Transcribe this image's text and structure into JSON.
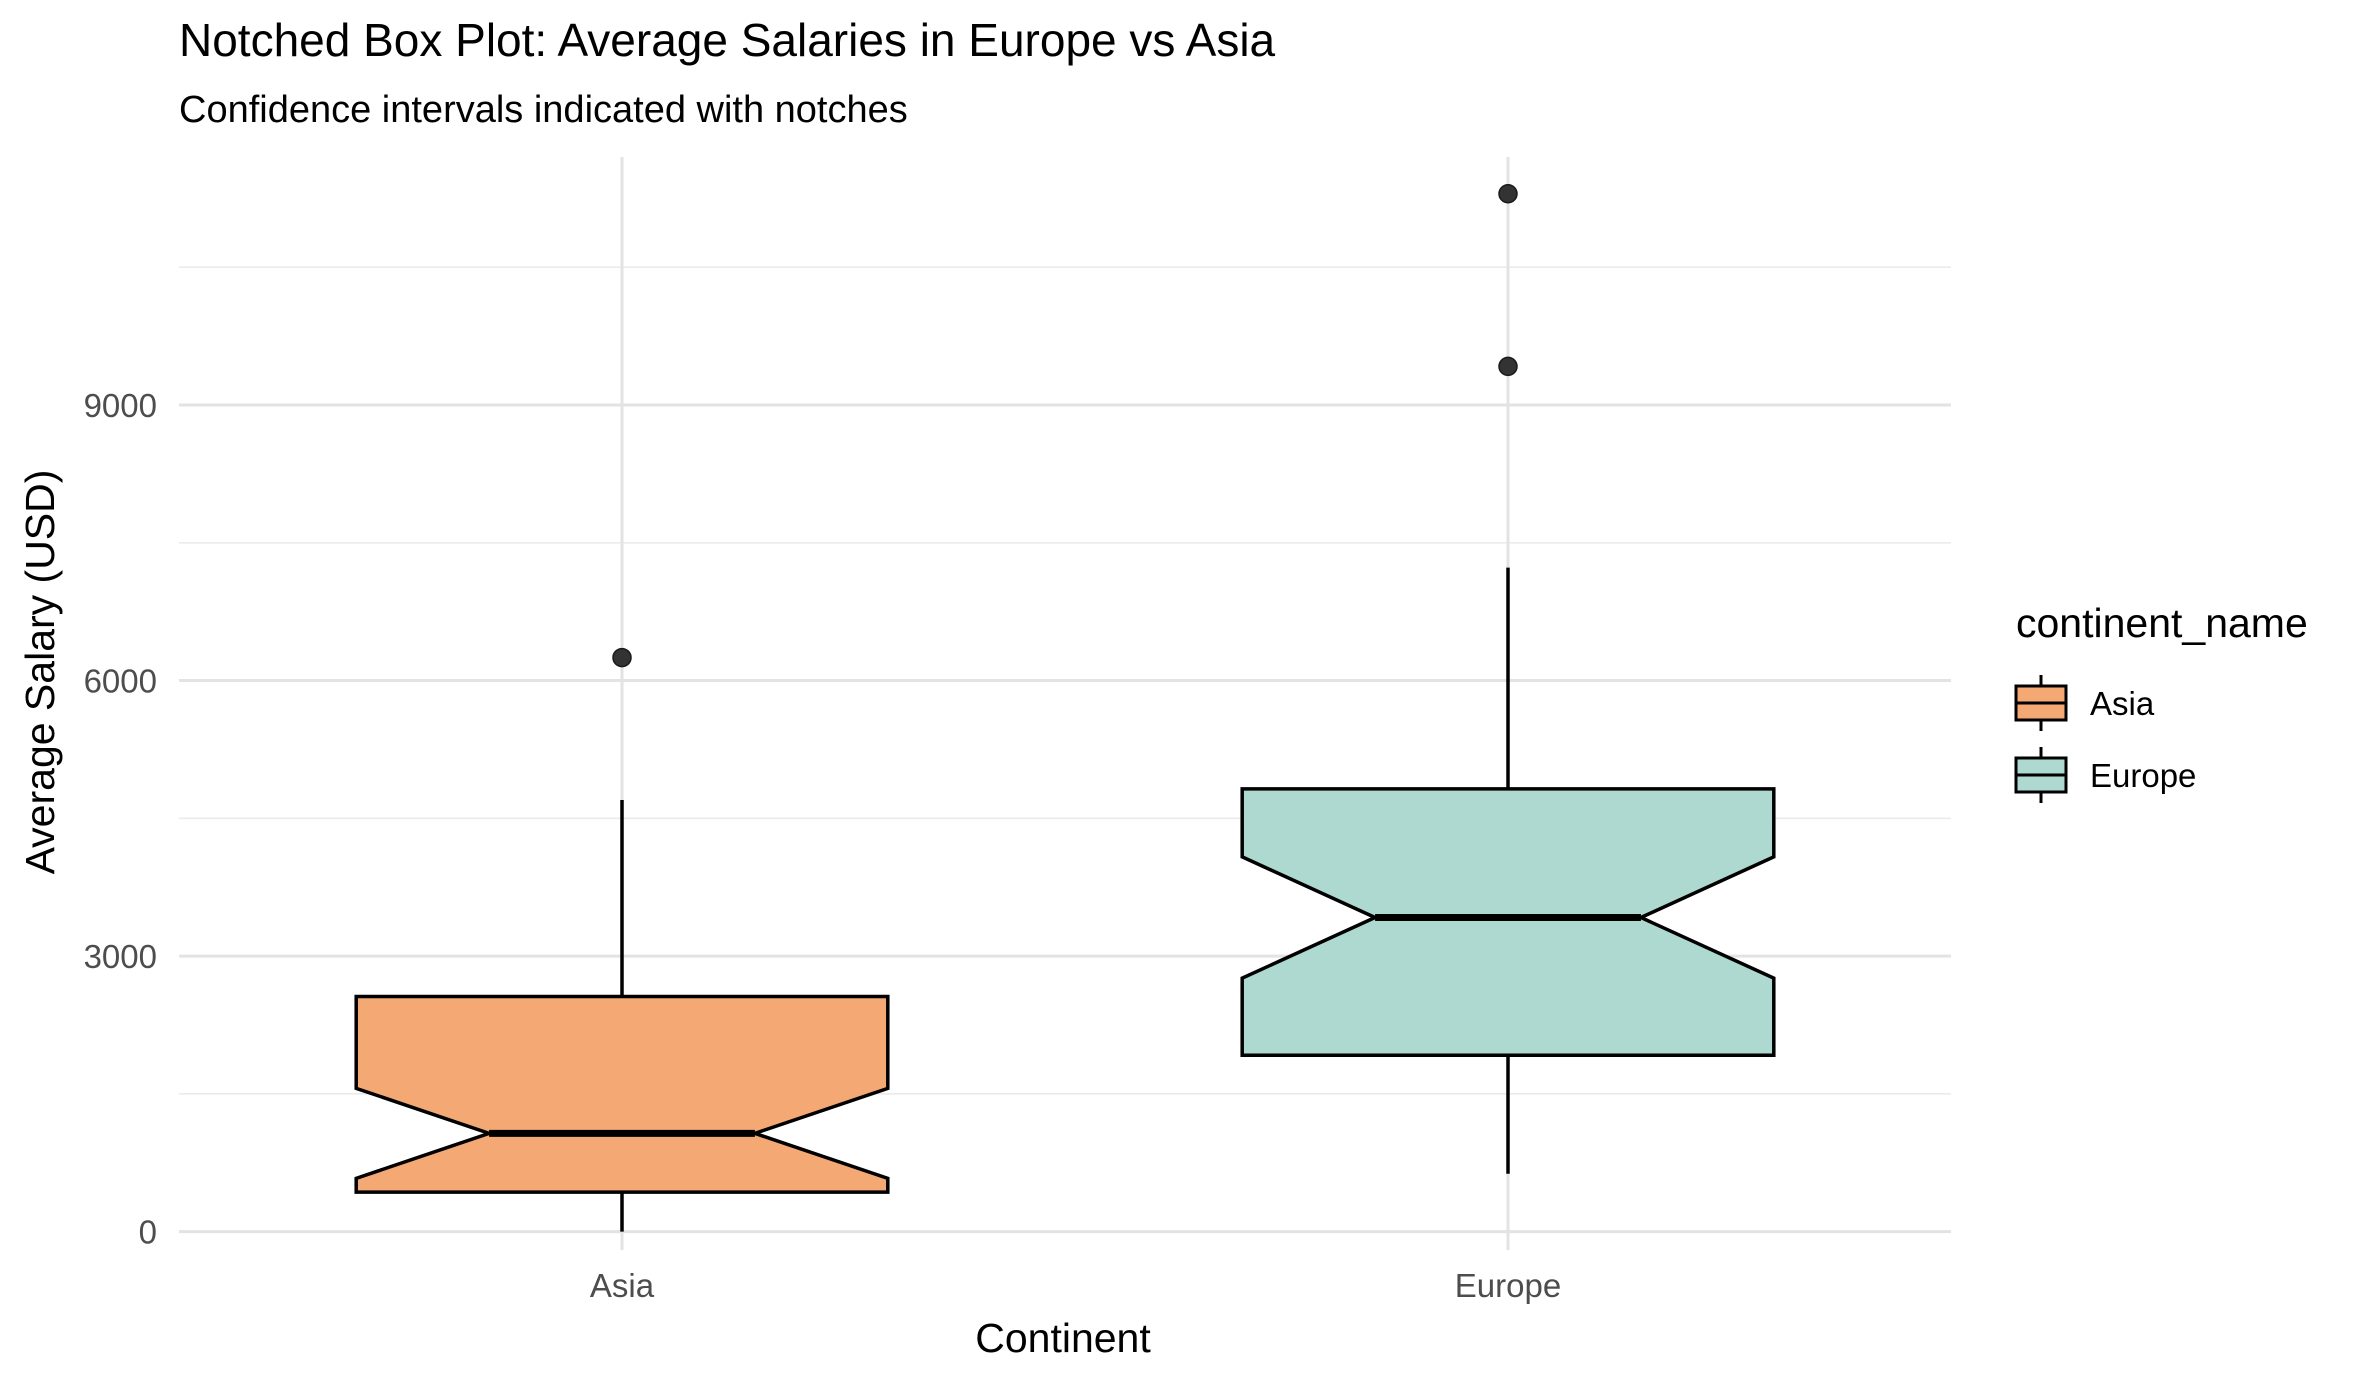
{
  "chart_data": {
    "type": "box",
    "title": "Notched Box Plot: Average Salaries in Europe vs Asia",
    "subtitle": "Confidence intervals indicated with notches",
    "xlabel": "Continent",
    "ylabel": "Average Salary (USD)",
    "ylim": [
      -200,
      11700
    ],
    "y_ticks": [
      0,
      3000,
      6000,
      9000
    ],
    "y_tick_labels": [
      "0",
      "3000",
      "6000",
      "9000"
    ],
    "y_minor_ticks": [
      1500,
      4500,
      7500,
      10500
    ],
    "grid": true,
    "legend": {
      "title": "continent_name",
      "position": "right",
      "entries": [
        "Asia",
        "Europe"
      ]
    },
    "categories": [
      "Asia",
      "Europe"
    ],
    "series": [
      {
        "name": "Asia",
        "color": "#F4A873",
        "whisker_low": 0,
        "q1": 430,
        "median": 1070,
        "q3": 2560,
        "whisker_high": 4700,
        "notch_low": 580,
        "notch_high": 1560,
        "outliers": [
          6250
        ]
      },
      {
        "name": "Europe",
        "color": "#ADD9D0",
        "whisker_low": 630,
        "q1": 1920,
        "median": 3420,
        "q3": 4820,
        "whisker_high": 7230,
        "notch_low": 2760,
        "notch_high": 4080,
        "outliers": [
          9420,
          11300
        ]
      }
    ]
  }
}
